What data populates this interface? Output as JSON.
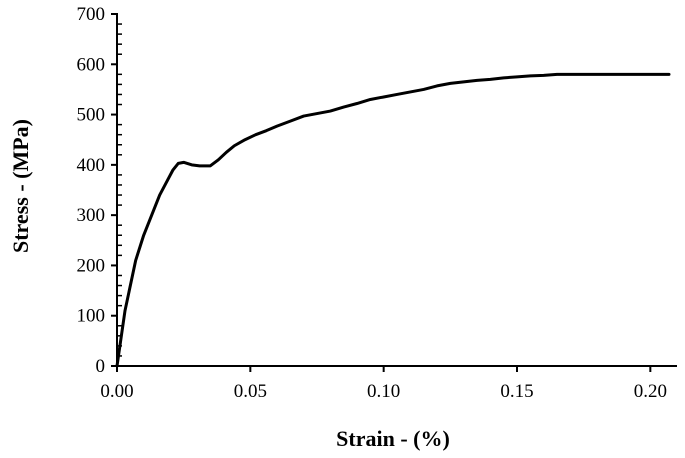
{
  "chart_data": {
    "type": "line",
    "title": "",
    "xlabel": "Strain - (%)",
    "ylabel": "Stress - (MPa)",
    "xlim": [
      0,
      0.21
    ],
    "ylim": [
      0,
      700
    ],
    "x_ticks": [
      "0.00",
      "0.05",
      "0.10",
      "0.15",
      "0.20"
    ],
    "y_ticks": [
      "0",
      "100",
      "200",
      "300",
      "400",
      "500",
      "600",
      "700"
    ],
    "grid": false,
    "legend": "none",
    "line_color": "#000000",
    "series": [
      {
        "x": [
          0.0,
          0.003,
          0.007,
          0.01,
          0.013,
          0.016,
          0.019,
          0.021,
          0.023,
          0.025,
          0.028,
          0.031,
          0.035,
          0.038,
          0.041,
          0.044,
          0.048,
          0.052,
          0.056,
          0.06,
          0.065,
          0.07,
          0.075,
          0.08,
          0.085,
          0.09,
          0.095,
          0.1,
          0.105,
          0.11,
          0.115,
          0.12,
          0.125,
          0.13,
          0.135,
          0.14,
          0.145,
          0.15,
          0.155,
          0.16,
          0.165,
          0.17,
          0.18,
          0.19,
          0.2,
          0.207
        ],
        "y": [
          0,
          110,
          210,
          260,
          300,
          340,
          370,
          390,
          403,
          405,
          400,
          398,
          398,
          410,
          425,
          438,
          450,
          460,
          468,
          477,
          487,
          497,
          502,
          507,
          515,
          522,
          530,
          535,
          540,
          545,
          550,
          557,
          562,
          565,
          568,
          570,
          573,
          575,
          577,
          578,
          580,
          580,
          580,
          580,
          580,
          580
        ]
      }
    ]
  }
}
